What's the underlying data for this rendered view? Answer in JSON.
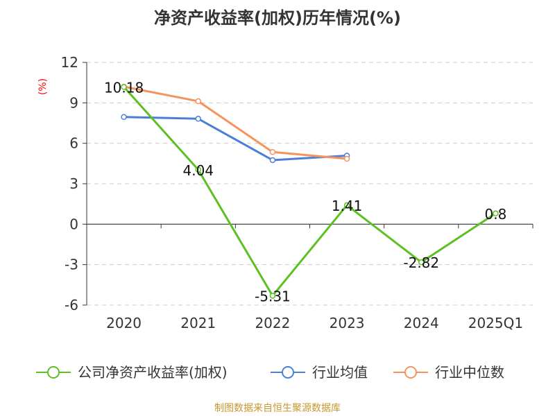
{
  "chart_data": {
    "type": "line",
    "title": "净资产收益率(加权)历年情况(%)",
    "ylabel": "(%)",
    "xlabel": "",
    "categories": [
      "2020",
      "2021",
      "2022",
      "2023",
      "2024",
      "2025Q1"
    ],
    "ylim": [
      -6,
      12
    ],
    "yticks": [
      12,
      9,
      6,
      3,
      0,
      -3,
      -6
    ],
    "grid": true,
    "legend_position": "bottom",
    "series": [
      {
        "name": "公司净资产收益率(加权)",
        "color": "#5cc022",
        "values": [
          10.18,
          4.04,
          -5.31,
          1.41,
          -2.82,
          0.8
        ],
        "labels": [
          "10.18",
          "4.04",
          "-5.31",
          "1.41",
          "-2.82",
          "0.8"
        ]
      },
      {
        "name": "行业均值",
        "color": "#4a7fd8",
        "values": [
          7.95,
          7.82,
          4.75,
          5.08,
          null,
          null
        ]
      },
      {
        "name": "行业中位数",
        "color": "#f5935e",
        "values": [
          10.2,
          9.12,
          5.35,
          4.85,
          null,
          null
        ]
      }
    ]
  },
  "source": "制图数据来自恒生聚源数据库"
}
